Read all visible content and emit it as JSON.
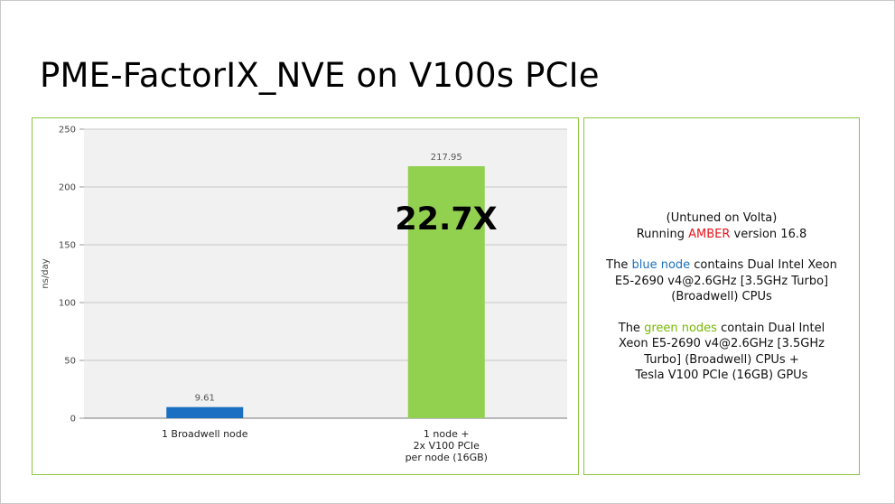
{
  "slide": {
    "title": "PME-FactorIX_NVE on V100s PCIe"
  },
  "chart_data": {
    "type": "bar",
    "ylabel": "ns/day",
    "ylim": [
      0,
      250
    ],
    "y_ticks": [
      0,
      50,
      100,
      150,
      200,
      250
    ],
    "y_tick_labels": [
      "0",
      "50",
      "100",
      "150",
      "200",
      "250"
    ],
    "categories": [
      [
        "1 Broadwell node"
      ],
      [
        "1 node +",
        "2x V100 PCIe",
        "per node (16GB)"
      ]
    ],
    "values": [
      9.61,
      217.95
    ],
    "data_labels": [
      "9.61",
      "217.95"
    ],
    "bar_colors": [
      "#1a6fc2",
      "#92d050"
    ],
    "annotation": "22.7X",
    "grid": true,
    "plot_background": "#f1f1f1"
  },
  "notes": {
    "p1_line1": "(Untuned on Volta)",
    "p1_line2_pre": "Running ",
    "p1_line2_hl": "AMBER",
    "p1_line2_post": " version 16.8",
    "p2_pre": "The ",
    "p2_hl": "blue node",
    "p2_l1_post": " contains Dual Intel Xeon",
    "p2_l2": "E5-2690 v4@2.6GHz [3.5GHz Turbo]",
    "p2_l3": "(Broadwell) CPUs",
    "p3_pre": "The ",
    "p3_hl": "green nodes",
    "p3_l1_post": " contain Dual Intel",
    "p3_l2": "Xeon E5-2690 v4@2.6GHz [3.5GHz",
    "p3_l3": "Turbo] (Broadwell) CPUs +",
    "p3_l4": "Tesla V100 PCIe (16GB) GPUs"
  },
  "colors": {
    "panel_border": "#8cc63f",
    "amber_red": "#e8141b",
    "blue": "#1a6fc2",
    "green": "#76b900"
  }
}
